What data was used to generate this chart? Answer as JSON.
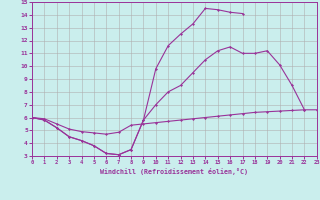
{
  "background_color": "#caeeed",
  "grid_color": "#b0b0b0",
  "line_color": "#993399",
  "xlim": [
    0,
    23
  ],
  "ylim": [
    3,
    15
  ],
  "xticks": [
    0,
    1,
    2,
    3,
    4,
    5,
    6,
    7,
    8,
    9,
    10,
    11,
    12,
    13,
    14,
    15,
    16,
    17,
    18,
    19,
    20,
    21,
    22,
    23
  ],
  "yticks": [
    3,
    4,
    5,
    6,
    7,
    8,
    9,
    10,
    11,
    12,
    13,
    14,
    15
  ],
  "xlabel": "Windchill (Refroidissement éolien,°C)",
  "line1_x": [
    0,
    1,
    2,
    3,
    4,
    5,
    6,
    7,
    8,
    9,
    10,
    11,
    12,
    13,
    14,
    15,
    16,
    17,
    18,
    19,
    20,
    21,
    22
  ],
  "line1_y": [
    6.0,
    5.8,
    5.2,
    4.5,
    4.2,
    3.8,
    3.2,
    3.1,
    3.5,
    5.8,
    9.8,
    11.6,
    12.5,
    13.3,
    14.5,
    14.4,
    14.2,
    14.1,
    null,
    null,
    null,
    null,
    null
  ],
  "line2_x": [
    0,
    1,
    2,
    3,
    4,
    5,
    6,
    7,
    8,
    9,
    10,
    11,
    12,
    13,
    14,
    15,
    16,
    17,
    18,
    19,
    20,
    21,
    22
  ],
  "line2_y": [
    6.0,
    5.8,
    5.2,
    4.5,
    4.2,
    3.8,
    3.2,
    3.1,
    3.5,
    5.8,
    7.0,
    8.0,
    8.5,
    9.5,
    10.5,
    11.2,
    11.5,
    11.0,
    11.0,
    11.2,
    10.1,
    8.5,
    6.6
  ],
  "line3_x": [
    0,
    1,
    2,
    3,
    4,
    5,
    6,
    7,
    8,
    9,
    10,
    11,
    12,
    13,
    14,
    15,
    16,
    17,
    18,
    19,
    20,
    21,
    22,
    23
  ],
  "line3_y": [
    6.0,
    5.9,
    5.5,
    5.1,
    4.9,
    4.8,
    4.7,
    4.85,
    5.4,
    5.5,
    5.6,
    5.7,
    5.8,
    5.9,
    6.0,
    6.1,
    6.2,
    6.3,
    6.4,
    6.45,
    6.5,
    6.55,
    6.6,
    6.6
  ]
}
